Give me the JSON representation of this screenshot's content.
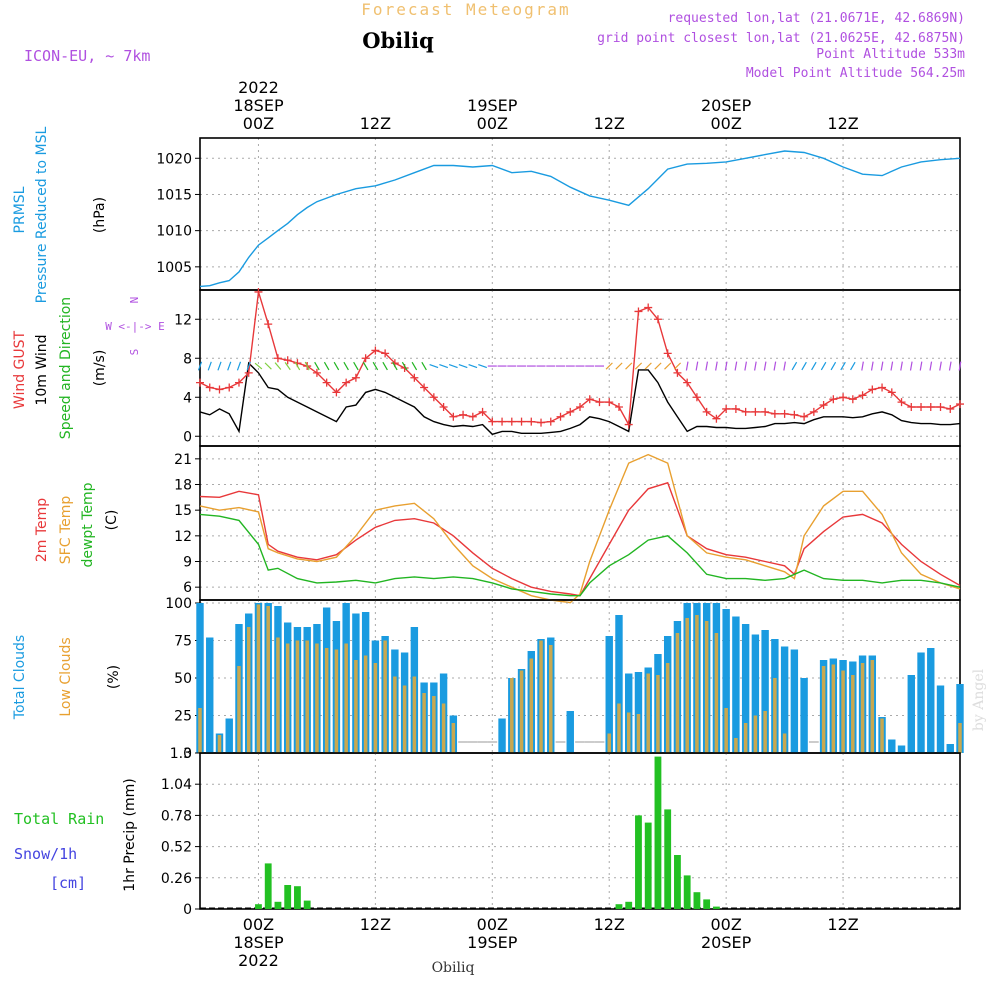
{
  "header": {
    "title": "Forecast Meteogram",
    "location": "Obiliq",
    "model": "ICON-EU, ~ 7km",
    "requested": "requested lon,lat (21.0671E, 42.6869N)",
    "grid_point": "grid point closest lon,lat (21.0625E, 42.6875N)",
    "point_altitude": "Point Altitude 533m",
    "model_altitude": "Model Point Altitude 564.25m",
    "footer_location": "Obiliq",
    "watermark": "by Angel"
  },
  "time_axis": {
    "hours_range": [
      -6,
      72
    ],
    "ticks": [
      {
        "hour": 0,
        "label": "00Z",
        "date": "18SEP",
        "year": "2022"
      },
      {
        "hour": 12,
        "label": "12Z",
        "date": "",
        "year": ""
      },
      {
        "hour": 24,
        "label": "00Z",
        "date": "19SEP",
        "year": ""
      },
      {
        "hour": 36,
        "label": "12Z",
        "date": "",
        "year": ""
      },
      {
        "hour": 48,
        "label": "00Z",
        "date": "20SEP",
        "year": ""
      },
      {
        "hour": 60,
        "label": "12Z",
        "date": "",
        "year": ""
      }
    ]
  },
  "labels": {
    "prmsl": "PRMSL",
    "prmsl_long": "Pressure Reduced to MSL",
    "hpa": "(hPa)",
    "gust": "Wind GUST",
    "wind10": "10m Wind",
    "wind_dir": "Speed and Direction",
    "ms": "(m/s)",
    "compass_ns": "N",
    "compass_we": "W <-|-> E",
    "compass_s": "S",
    "t2m": "2m Temp",
    "sfc": "SFC Temp",
    "dewpt": "dewpt Temp",
    "c": "(C)",
    "total_clouds": "Total Clouds",
    "low_clouds": "Low Clouds",
    "pct": "(%)",
    "total_rain": "Total  Rain",
    "snow": "Snow/1h",
    "cm": "[cm]",
    "precip": "1hr Precip (mm)"
  },
  "colors": {
    "pressure": "#1a9be0",
    "gust": "#e8383a",
    "wind": "#000000",
    "wind_dir": "#22b522",
    "t2m": "#e8383a",
    "sfc": "#e8a030",
    "dewpt": "#22b522",
    "total_clouds": "#1a9be0",
    "low_clouds": "#c8a850",
    "rain": "#22c022",
    "purple": "#b050e0",
    "orange_title": "#f0c070",
    "snow": "#4444e0"
  },
  "chart_data": [
    {
      "type": "line",
      "title": "PRMSL Pressure Reduced to MSL",
      "ylabel": "hPa",
      "ylim": [
        1001.8,
        1022.8
      ],
      "yticks": [
        1005,
        1010,
        1015,
        1020
      ],
      "x": [
        -6,
        -5,
        -4,
        -3,
        -2,
        -1,
        0,
        1,
        2,
        3,
        4,
        5,
        6,
        8,
        10,
        12,
        14,
        16,
        18,
        20,
        22,
        24,
        26,
        28,
        30,
        32,
        34,
        36,
        38,
        40,
        42,
        44,
        46,
        48,
        50,
        52,
        54,
        56,
        58,
        60,
        62,
        64,
        66,
        68,
        70,
        72
      ],
      "series": [
        {
          "name": "PRMSL",
          "values": [
            1002.3,
            1002.4,
            1002.8,
            1003.1,
            1004.3,
            1006.3,
            1008.0,
            1009.0,
            1010.0,
            1011.0,
            1012.2,
            1013.2,
            1014.0,
            1015.0,
            1015.8,
            1016.2,
            1017.0,
            1018.0,
            1019.0,
            1019.0,
            1018.8,
            1019.0,
            1018.0,
            1018.2,
            1017.5,
            1016.0,
            1014.8,
            1014.2,
            1013.5,
            1015.8,
            1018.5,
            1019.2,
            1019.3,
            1019.5,
            1020.0,
            1020.5,
            1021.0,
            1020.8,
            1020.0,
            1018.8,
            1017.8,
            1017.6,
            1018.8,
            1019.5,
            1019.8,
            1020.0
          ]
        }
      ]
    },
    {
      "type": "line",
      "title": "Wind GUST / 10m Wind",
      "ylabel": "m/s",
      "ylim": [
        -1,
        15
      ],
      "yticks": [
        0,
        4,
        8,
        12
      ],
      "x": [
        -6,
        -5,
        -4,
        -3,
        -2,
        -1,
        0,
        1,
        2,
        3,
        4,
        5,
        6,
        7,
        8,
        9,
        10,
        11,
        12,
        13,
        14,
        15,
        16,
        17,
        18,
        19,
        20,
        21,
        22,
        23,
        24,
        25,
        26,
        27,
        28,
        29,
        30,
        31,
        32,
        33,
        34,
        35,
        36,
        37,
        38,
        39,
        40,
        41,
        42,
        43,
        44,
        45,
        46,
        47,
        48,
        49,
        50,
        51,
        52,
        53,
        54,
        55,
        56,
        57,
        58,
        59,
        60,
        61,
        62,
        63,
        64,
        65,
        66,
        67,
        68,
        69,
        70,
        71,
        72
      ],
      "series": [
        {
          "name": "Wind GUST",
          "values": [
            5.5,
            5.0,
            4.8,
            5.0,
            5.5,
            6.5,
            14.8,
            11.5,
            8.0,
            7.8,
            7.5,
            7.2,
            6.5,
            5.5,
            4.5,
            5.5,
            6.0,
            8.0,
            8.8,
            8.5,
            7.5,
            7.0,
            6.0,
            5.0,
            4.0,
            3.0,
            2.0,
            2.2,
            2.0,
            2.5,
            1.5,
            1.5,
            1.5,
            1.5,
            1.5,
            1.4,
            1.5,
            2.0,
            2.5,
            3.0,
            3.8,
            3.5,
            3.5,
            3.0,
            1.2,
            12.8,
            13.2,
            12.0,
            8.5,
            6.5,
            5.5,
            4.0,
            2.5,
            1.8,
            2.8,
            2.8,
            2.5,
            2.5,
            2.5,
            2.3,
            2.3,
            2.2,
            2.0,
            2.5,
            3.2,
            3.8,
            4.0,
            3.8,
            4.2,
            4.8,
            5.0,
            4.5,
            3.5,
            3.0,
            3.0,
            3.0,
            3.0,
            2.8,
            3.3
          ]
        },
        {
          "name": "10m Wind",
          "values": [
            2.5,
            2.2,
            2.8,
            2.3,
            0.5,
            7.5,
            6.5,
            5.0,
            4.8,
            4.0,
            3.5,
            3.0,
            2.5,
            2.0,
            1.5,
            3.0,
            3.2,
            4.5,
            4.8,
            4.5,
            4.0,
            3.5,
            3.0,
            2.0,
            1.5,
            1.2,
            1.0,
            1.1,
            1.0,
            1.2,
            0.2,
            0.5,
            0.5,
            0.3,
            0.3,
            0.3,
            0.4,
            0.5,
            0.8,
            1.2,
            2.0,
            1.8,
            1.5,
            1.0,
            0.5,
            6.8,
            6.8,
            5.5,
            3.5,
            2.0,
            0.5,
            1.0,
            1.0,
            0.9,
            0.9,
            0.8,
            0.8,
            0.9,
            1.0,
            1.3,
            1.3,
            1.4,
            1.3,
            1.7,
            2.0,
            2.0,
            2.0,
            1.9,
            2.0,
            2.3,
            2.5,
            2.2,
            1.6,
            1.4,
            1.3,
            1.3,
            1.2,
            1.2,
            1.3
          ]
        }
      ]
    },
    {
      "type": "line",
      "title": "2m Temp / SFC Temp / dewpt Temp",
      "ylabel": "C",
      "ylim": [
        4.5,
        22.5
      ],
      "yticks": [
        6,
        9,
        12,
        15,
        18,
        21
      ],
      "x": [
        -6,
        -4,
        -2,
        0,
        1,
        2,
        4,
        6,
        8,
        10,
        12,
        14,
        16,
        18,
        20,
        22,
        24,
        26,
        28,
        30,
        32,
        33,
        34,
        36,
        38,
        40,
        42,
        44,
        46,
        48,
        50,
        52,
        54,
        55,
        56,
        58,
        60,
        62,
        64,
        66,
        68,
        70,
        72
      ],
      "series": [
        {
          "name": "2m Temp",
          "values": [
            16.6,
            16.5,
            17.2,
            16.8,
            11.0,
            10.2,
            9.5,
            9.2,
            9.8,
            11.5,
            13.0,
            13.8,
            14.0,
            13.5,
            12.0,
            10.0,
            8.2,
            7.0,
            6.0,
            5.5,
            5.2,
            5.0,
            7.0,
            11.0,
            15.0,
            17.5,
            18.2,
            12.0,
            10.5,
            9.8,
            9.5,
            9.0,
            8.5,
            7.5,
            10.5,
            12.5,
            14.2,
            14.5,
            13.5,
            11.0,
            9.0,
            7.5,
            6.2
          ]
        },
        {
          "name": "SFC Temp",
          "values": [
            15.5,
            15.0,
            15.3,
            14.8,
            10.5,
            10.0,
            9.3,
            9.0,
            9.5,
            12.0,
            15.0,
            15.5,
            15.8,
            14.0,
            11.0,
            8.5,
            7.0,
            6.0,
            5.0,
            4.5,
            4.2,
            5.2,
            9.0,
            15.0,
            20.5,
            21.5,
            20.5,
            12.0,
            10.0,
            9.5,
            9.2,
            8.5,
            7.8,
            7.0,
            12.0,
            15.5,
            17.2,
            17.2,
            14.5,
            10.0,
            7.5,
            6.5,
            5.8
          ]
        },
        {
          "name": "dewpt Temp",
          "values": [
            14.5,
            14.3,
            13.8,
            11.0,
            8.0,
            8.2,
            7.0,
            6.5,
            6.6,
            6.8,
            6.5,
            7.0,
            7.2,
            7.0,
            7.2,
            7.0,
            6.5,
            5.8,
            5.5,
            5.2,
            5.0,
            5.0,
            6.5,
            8.5,
            9.8,
            11.5,
            12.0,
            10.0,
            7.5,
            7.0,
            7.0,
            6.8,
            7.0,
            7.5,
            8.0,
            7.0,
            6.8,
            6.8,
            6.5,
            6.8,
            6.8,
            6.5,
            6.0
          ]
        }
      ]
    },
    {
      "type": "bar",
      "title": "Total Clouds / Low Clouds",
      "ylabel": "%",
      "ylim": [
        0,
        102
      ],
      "yticks": [
        0,
        25,
        50,
        75,
        100
      ],
      "x": [
        -6,
        -5,
        -4,
        -3,
        -2,
        -1,
        0,
        1,
        2,
        3,
        4,
        5,
        6,
        7,
        8,
        9,
        10,
        11,
        12,
        13,
        14,
        15,
        16,
        17,
        18,
        19,
        20,
        21,
        22,
        23,
        24,
        25,
        26,
        27,
        28,
        29,
        30,
        31,
        32,
        33,
        34,
        35,
        36,
        37,
        38,
        39,
        40,
        41,
        42,
        43,
        44,
        45,
        46,
        47,
        48,
        49,
        50,
        51,
        52,
        53,
        54,
        55,
        56,
        57,
        58,
        59,
        60,
        61,
        62,
        63,
        64,
        65,
        66,
        67,
        68,
        69,
        70,
        71,
        72
      ],
      "series": [
        {
          "name": "Total Clouds",
          "values": [
            100,
            77,
            13,
            23,
            86,
            93,
            100,
            100,
            98,
            87,
            84,
            84,
            86,
            97,
            88,
            100,
            93,
            94,
            75,
            78,
            69,
            67,
            84,
            47,
            47,
            53,
            25,
            0,
            0,
            0,
            0,
            23,
            50,
            56,
            68,
            76,
            77,
            0,
            28,
            0,
            0,
            0,
            78,
            92,
            53,
            54,
            57,
            66,
            78,
            88,
            100,
            100,
            100,
            100,
            96,
            91,
            86,
            79,
            82,
            76,
            71,
            69,
            50,
            0,
            62,
            63,
            62,
            61,
            65,
            65,
            24,
            9,
            5,
            52,
            67,
            70,
            45,
            6,
            46
          ]
        },
        {
          "name": "Low Clouds",
          "values": [
            30,
            0,
            12,
            0,
            58,
            84,
            99,
            98,
            77,
            73,
            75,
            75,
            73,
            70,
            69,
            73,
            62,
            65,
            60,
            75,
            51,
            45,
            51,
            40,
            38,
            33,
            20,
            0,
            0,
            0,
            0,
            0,
            50,
            55,
            63,
            75,
            72,
            0,
            0,
            0,
            0,
            0,
            13,
            33,
            27,
            26,
            53,
            52,
            60,
            80,
            90,
            92,
            88,
            80,
            30,
            10,
            20,
            25,
            28,
            50,
            13,
            0,
            0,
            0,
            58,
            59,
            55,
            52,
            60,
            62,
            23,
            0,
            0,
            0,
            0,
            0,
            0,
            0,
            20
          ]
        }
      ]
    },
    {
      "type": "bar",
      "title": "Total Rain / Snow 1h",
      "ylabel": "1hr Precip (mm)",
      "ylim": [
        0,
        1.3
      ],
      "yticks": [
        0,
        0.26,
        0.52,
        0.78,
        1.04,
        1.3
      ],
      "x": [
        0,
        1,
        2,
        3,
        4,
        5,
        37,
        38,
        39,
        40,
        41,
        42,
        43,
        44,
        45,
        46,
        47
      ],
      "series": [
        {
          "name": "Total Rain",
          "values": [
            0.04,
            0.38,
            0.06,
            0.2,
            0.19,
            0.07,
            0.04,
            0.06,
            0.78,
            0.72,
            1.27,
            0.83,
            0.45,
            0.28,
            0.14,
            0.08,
            0.02
          ]
        }
      ]
    }
  ]
}
